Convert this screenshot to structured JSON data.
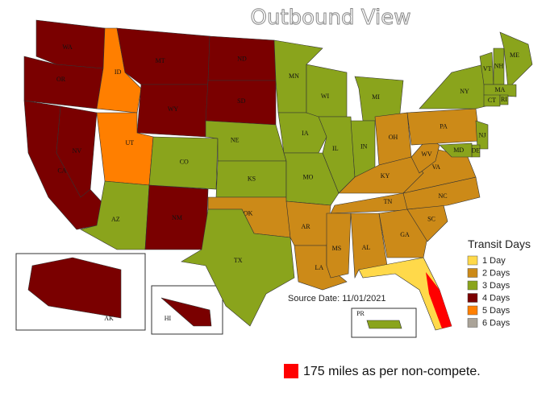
{
  "title": "Outbound View",
  "source": "Source Date: 11/01/2021",
  "legend": {
    "title": "Transit Days",
    "items": [
      {
        "label": "1 Day",
        "color": "#ffd94a"
      },
      {
        "label": "2 Days",
        "color": "#cc8a18"
      },
      {
        "label": "3 Days",
        "color": "#8aa41c"
      },
      {
        "label": "4 Days",
        "color": "#7a0000"
      },
      {
        "label": "5 Days",
        "color": "#ff7f00"
      },
      {
        "label": "6 Days",
        "color": "#aaa398"
      }
    ]
  },
  "states": [
    {
      "label": "WA",
      "days": 4
    },
    {
      "label": "OR",
      "days": 4
    },
    {
      "label": "CA",
      "days": 4
    },
    {
      "label": "NV",
      "days": 4
    },
    {
      "label": "ID",
      "days": 5
    },
    {
      "label": "MT",
      "days": 4
    },
    {
      "label": "WY",
      "days": 4
    },
    {
      "label": "UT",
      "days": 5
    },
    {
      "label": "CO",
      "days": 3
    },
    {
      "label": "AZ",
      "days": 3
    },
    {
      "label": "NM",
      "days": 4
    },
    {
      "label": "ND",
      "days": 4
    },
    {
      "label": "SD",
      "days": 4
    },
    {
      "label": "NE",
      "days": 3
    },
    {
      "label": "KS",
      "days": 3
    },
    {
      "label": "OK",
      "days": 2
    },
    {
      "label": "TX",
      "days": 3
    },
    {
      "label": "MN",
      "days": 3
    },
    {
      "label": "IA",
      "days": 3
    },
    {
      "label": "MO",
      "days": 3
    },
    {
      "label": "AR",
      "days": 2
    },
    {
      "label": "LA",
      "days": 2
    },
    {
      "label": "WI",
      "days": 3
    },
    {
      "label": "IL",
      "days": 3
    },
    {
      "label": "MI",
      "days": 3
    },
    {
      "label": "IN",
      "days": 3
    },
    {
      "label": "OH",
      "days": 2
    },
    {
      "label": "KY",
      "days": 2
    },
    {
      "label": "TN",
      "days": 2
    },
    {
      "label": "MS",
      "days": 2
    },
    {
      "label": "AL",
      "days": 2
    },
    {
      "label": "GA",
      "days": 2
    },
    {
      "label": null,
      "days": 1
    },
    {
      "label": "SC",
      "days": 2
    },
    {
      "label": "NC",
      "days": 2
    },
    {
      "label": "VA",
      "days": 2
    },
    {
      "label": "WV",
      "days": 2
    },
    {
      "label": "PA",
      "days": 2
    },
    {
      "label": "NY",
      "days": 3
    },
    {
      "label": "VT",
      "days": 3
    },
    {
      "label": "NH",
      "days": 3
    },
    {
      "label": "ME",
      "days": 3
    },
    {
      "label": "MA",
      "days": 3
    },
    {
      "label": "CT",
      "days": 3
    },
    {
      "label": "RI",
      "days": 3
    },
    {
      "label": "NJ",
      "days": 3
    },
    {
      "label": "DE",
      "days": 3
    },
    {
      "label": "MD",
      "days": 3
    },
    {
      "label": "AK",
      "days": 4
    },
    {
      "label": "HI",
      "days": 4
    },
    {
      "label": "PR",
      "days": 3
    }
  ],
  "note": {
    "text": "175 miles as per non-compete.",
    "color": "#ff0000"
  }
}
